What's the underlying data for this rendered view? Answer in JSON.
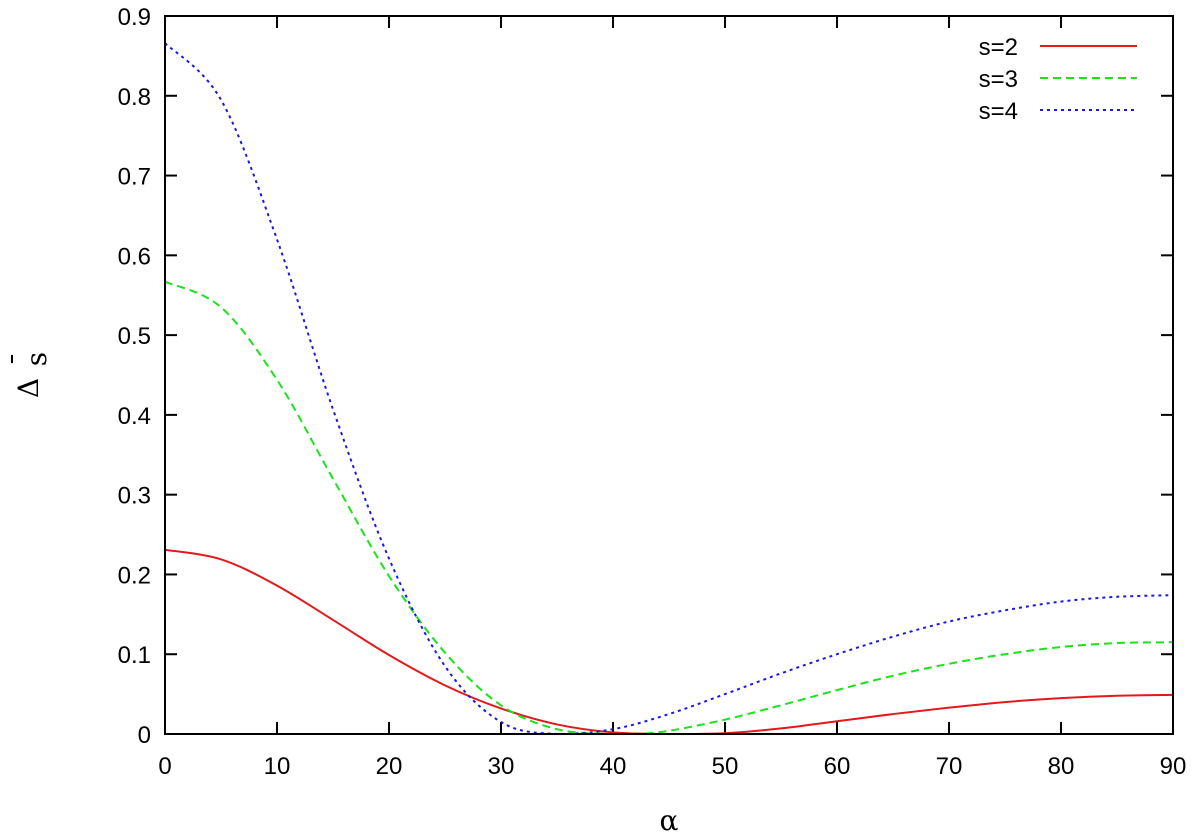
{
  "chart_data": {
    "type": "line",
    "title": "",
    "xlabel": "α",
    "ylabel": {
      "base": "Δ",
      "sub": "s",
      "overbar": "¯"
    },
    "xlim": [
      0,
      90
    ],
    "ylim": [
      0,
      0.9
    ],
    "xticks": [
      0,
      10,
      20,
      30,
      40,
      50,
      60,
      70,
      80,
      90
    ],
    "yticks": [
      0,
      0.1,
      0.2,
      0.3,
      0.4,
      0.5,
      0.6,
      0.7,
      0.8,
      0.9
    ],
    "xtick_labels": [
      "0",
      "10",
      "20",
      "30",
      "40",
      "50",
      "60",
      "70",
      "80",
      "90"
    ],
    "ytick_labels": [
      "0",
      "0.1",
      "0.2",
      "0.3",
      "0.4",
      "0.5",
      "0.6",
      "0.7",
      "0.8",
      "0.9"
    ],
    "grid": false,
    "legend_position": "top-right",
    "series": [
      {
        "name": "s=2",
        "color": "#e3191c",
        "dash": "solid",
        "x": [
          0,
          5,
          10,
          15,
          20,
          25,
          30,
          35,
          40,
          45,
          50,
          55,
          60,
          65,
          70,
          75,
          80,
          85,
          90
        ],
        "y": [
          0.231,
          0.219,
          0.186,
          0.143,
          0.099,
          0.061,
          0.032,
          0.012,
          0.002,
          0.0,
          0.001,
          0.007,
          0.016,
          0.025,
          0.033,
          0.04,
          0.045,
          0.048,
          0.049
        ]
      },
      {
        "name": "s=3",
        "color": "#19e319",
        "dash": "dashed",
        "x": [
          0,
          5,
          10,
          15,
          20,
          25,
          30,
          35,
          40,
          42,
          45,
          50,
          55,
          60,
          65,
          70,
          75,
          80,
          85,
          90
        ],
        "y": [
          0.567,
          0.535,
          0.444,
          0.32,
          0.198,
          0.102,
          0.036,
          0.006,
          0.0,
          0.0,
          0.004,
          0.018,
          0.036,
          0.055,
          0.073,
          0.088,
          0.1,
          0.109,
          0.114,
          0.115
        ]
      },
      {
        "name": "s=4",
        "color": "#1919e3",
        "dash": "dotted",
        "x": [
          0,
          5,
          10,
          15,
          20,
          25,
          30,
          35,
          40,
          45,
          50,
          55,
          60,
          65,
          70,
          75,
          80,
          85,
          90
        ],
        "y": [
          0.866,
          0.795,
          0.62,
          0.407,
          0.22,
          0.085,
          0.015,
          0.0,
          0.006,
          0.025,
          0.05,
          0.076,
          0.1,
          0.122,
          0.141,
          0.155,
          0.166,
          0.172,
          0.174
        ]
      }
    ]
  }
}
